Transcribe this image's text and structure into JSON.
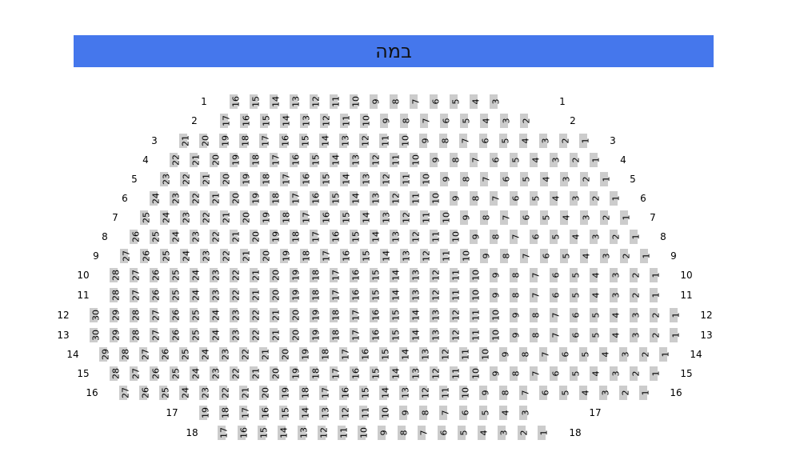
{
  "stage": {
    "label": "במה",
    "color": "#4577ec"
  },
  "seat_color": "#cccccc",
  "rows": [
    {
      "label": "1",
      "seats": [
        16,
        15,
        14,
        13,
        12,
        11,
        10,
        9,
        8,
        7,
        6,
        5,
        4,
        3
      ]
    },
    {
      "label": "2",
      "seats": [
        17,
        16,
        15,
        14,
        13,
        12,
        11,
        10,
        9,
        8,
        7,
        6,
        5,
        4,
        3,
        2
      ]
    },
    {
      "label": "3",
      "seats": [
        21,
        20,
        19,
        18,
        17,
        16,
        15,
        14,
        13,
        12,
        11,
        10,
        9,
        8,
        7,
        6,
        5,
        4,
        3,
        2,
        1
      ]
    },
    {
      "label": "4",
      "seats": [
        22,
        21,
        20,
        19,
        18,
        17,
        16,
        15,
        14,
        13,
        12,
        11,
        10,
        9,
        8,
        7,
        6,
        5,
        4,
        3,
        2,
        1
      ]
    },
    {
      "label": "5",
      "seats": [
        23,
        22,
        21,
        20,
        19,
        18,
        17,
        16,
        15,
        14,
        13,
        12,
        11,
        10,
        9,
        8,
        7,
        6,
        5,
        4,
        3,
        2,
        1
      ]
    },
    {
      "label": "6",
      "seats": [
        24,
        23,
        22,
        21,
        20,
        19,
        18,
        17,
        16,
        15,
        14,
        13,
        12,
        11,
        10,
        9,
        8,
        7,
        6,
        5,
        4,
        3,
        2,
        1
      ]
    },
    {
      "label": "7",
      "seats": [
        25,
        24,
        23,
        22,
        21,
        20,
        19,
        18,
        17,
        16,
        15,
        14,
        13,
        12,
        11,
        10,
        9,
        8,
        7,
        6,
        5,
        4,
        3,
        2,
        1
      ]
    },
    {
      "label": "8",
      "seats": [
        26,
        25,
        24,
        23,
        22,
        21,
        20,
        19,
        18,
        17,
        16,
        15,
        14,
        13,
        12,
        11,
        10,
        9,
        8,
        7,
        6,
        5,
        4,
        3,
        2,
        1
      ]
    },
    {
      "label": "9",
      "seats": [
        27,
        26,
        25,
        24,
        23,
        22,
        21,
        20,
        19,
        18,
        17,
        16,
        15,
        14,
        13,
        12,
        11,
        10,
        9,
        8,
        7,
        6,
        5,
        4,
        3,
        2,
        1
      ]
    },
    {
      "label": "10",
      "seats": [
        28,
        27,
        26,
        25,
        24,
        23,
        22,
        21,
        20,
        19,
        18,
        17,
        16,
        15,
        14,
        13,
        12,
        11,
        10,
        9,
        8,
        7,
        6,
        5,
        4,
        3,
        2,
        1
      ]
    },
    {
      "label": "11",
      "seats": [
        28,
        27,
        26,
        25,
        24,
        23,
        22,
        21,
        20,
        19,
        18,
        17,
        16,
        15,
        14,
        13,
        12,
        11,
        10,
        9,
        8,
        7,
        6,
        5,
        4,
        3,
        2,
        1
      ]
    },
    {
      "label": "12",
      "seats": [
        30,
        29,
        28,
        27,
        26,
        25,
        24,
        23,
        22,
        21,
        20,
        19,
        18,
        17,
        16,
        15,
        14,
        13,
        12,
        11,
        10,
        9,
        8,
        7,
        6,
        5,
        4,
        3,
        2,
        1
      ]
    },
    {
      "label": "13",
      "seats": [
        30,
        29,
        28,
        27,
        26,
        25,
        24,
        23,
        22,
        21,
        20,
        19,
        18,
        17,
        16,
        15,
        14,
        13,
        12,
        11,
        10,
        9,
        8,
        7,
        6,
        5,
        4,
        3,
        2,
        1
      ]
    },
    {
      "label": "14",
      "seats": [
        29,
        28,
        27,
        26,
        25,
        24,
        23,
        22,
        21,
        20,
        19,
        18,
        17,
        16,
        15,
        14,
        13,
        12,
        11,
        10,
        9,
        8,
        7,
        6,
        5,
        4,
        3,
        2,
        1
      ]
    },
    {
      "label": "15",
      "seats": [
        28,
        27,
        26,
        25,
        24,
        23,
        22,
        21,
        20,
        19,
        18,
        17,
        16,
        15,
        14,
        13,
        12,
        11,
        10,
        9,
        8,
        7,
        6,
        5,
        4,
        3,
        2,
        1
      ]
    },
    {
      "label": "16",
      "seats": [
        27,
        26,
        25,
        24,
        23,
        22,
        21,
        20,
        19,
        18,
        17,
        16,
        15,
        14,
        13,
        12,
        11,
        10,
        9,
        8,
        7,
        6,
        5,
        4,
        3,
        2,
        1
      ]
    },
    {
      "label": "17",
      "seats": [
        19,
        18,
        17,
        16,
        15,
        14,
        13,
        12,
        11,
        10,
        9,
        8,
        7,
        6,
        5,
        4,
        3
      ]
    },
    {
      "label": "18",
      "seats": [
        17,
        16,
        15,
        14,
        13,
        12,
        11,
        10,
        9,
        8,
        7,
        6,
        5,
        4,
        3,
        2,
        1
      ]
    }
  ]
}
